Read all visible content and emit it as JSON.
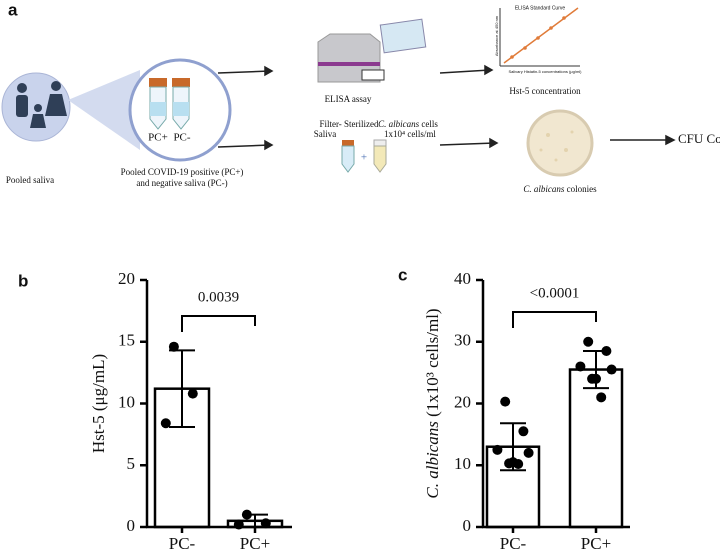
{
  "figure": {
    "panel_a": "a",
    "panel_b": "b",
    "panel_c": "c"
  },
  "diagram": {
    "pooled_saliva": "Pooled saliva",
    "tube_pos": "PC+",
    "tube_neg": "PC-",
    "pooled_line1": "Pooled COVID-19 positive (PC+)",
    "pooled_line2": "and negative saliva (PC-)",
    "elisa": "ELISA assay",
    "curve_title": "ELISA Standard Curve",
    "curve_y": "Absorbance at 450 nm",
    "curve_x": "Salivary Histatin-5 concentrations (μg/ml)",
    "hst_conc": "Hst-5 concentration",
    "filter1": "Filter- Sterilized",
    "filter2": "Saliva",
    "cells1": "C. albicans",
    "cells1b": "cells",
    "cells2": "1x10⁴ cells/ml",
    "plus": "+",
    "colonies1": "C. albicans",
    "colonies2": "colonies",
    "cfu": "CFU Count"
  },
  "chart_data": [
    {
      "type": "bar",
      "ylabel": [
        "Hst-5  (μg/mL)"
      ],
      "categories": [
        "PC-",
        "PC+"
      ],
      "values": [
        11.2,
        0.5
      ],
      "errors": [
        3.1,
        0.5
      ],
      "points": [
        [
          14.6,
          10.8,
          8.4
        ],
        [
          1.0,
          0.3,
          0.2
        ]
      ],
      "ylim": [
        0,
        20
      ],
      "yticks": [
        0,
        5,
        10,
        15,
        20
      ],
      "annotation": "0.0039",
      "color": "#ffffff"
    },
    {
      "type": "bar",
      "ylabel": [
        "C. albicans",
        "  (1x10³ cells/ml)"
      ],
      "categories": [
        "PC-",
        "PC+"
      ],
      "values": [
        13.0,
        25.5
      ],
      "errors": [
        3.8,
        3.0
      ],
      "points": [
        [
          20.3,
          15.5,
          12.5,
          12.0,
          10.5,
          10.3,
          10.2
        ],
        [
          30.0,
          28.5,
          26.0,
          25.5,
          24.0,
          24.0,
          21.0
        ]
      ],
      "ylim": [
        0,
        40
      ],
      "yticks": [
        0,
        10,
        20,
        30,
        40
      ],
      "annotation": "<0.0001",
      "color": "#ffffff"
    }
  ]
}
